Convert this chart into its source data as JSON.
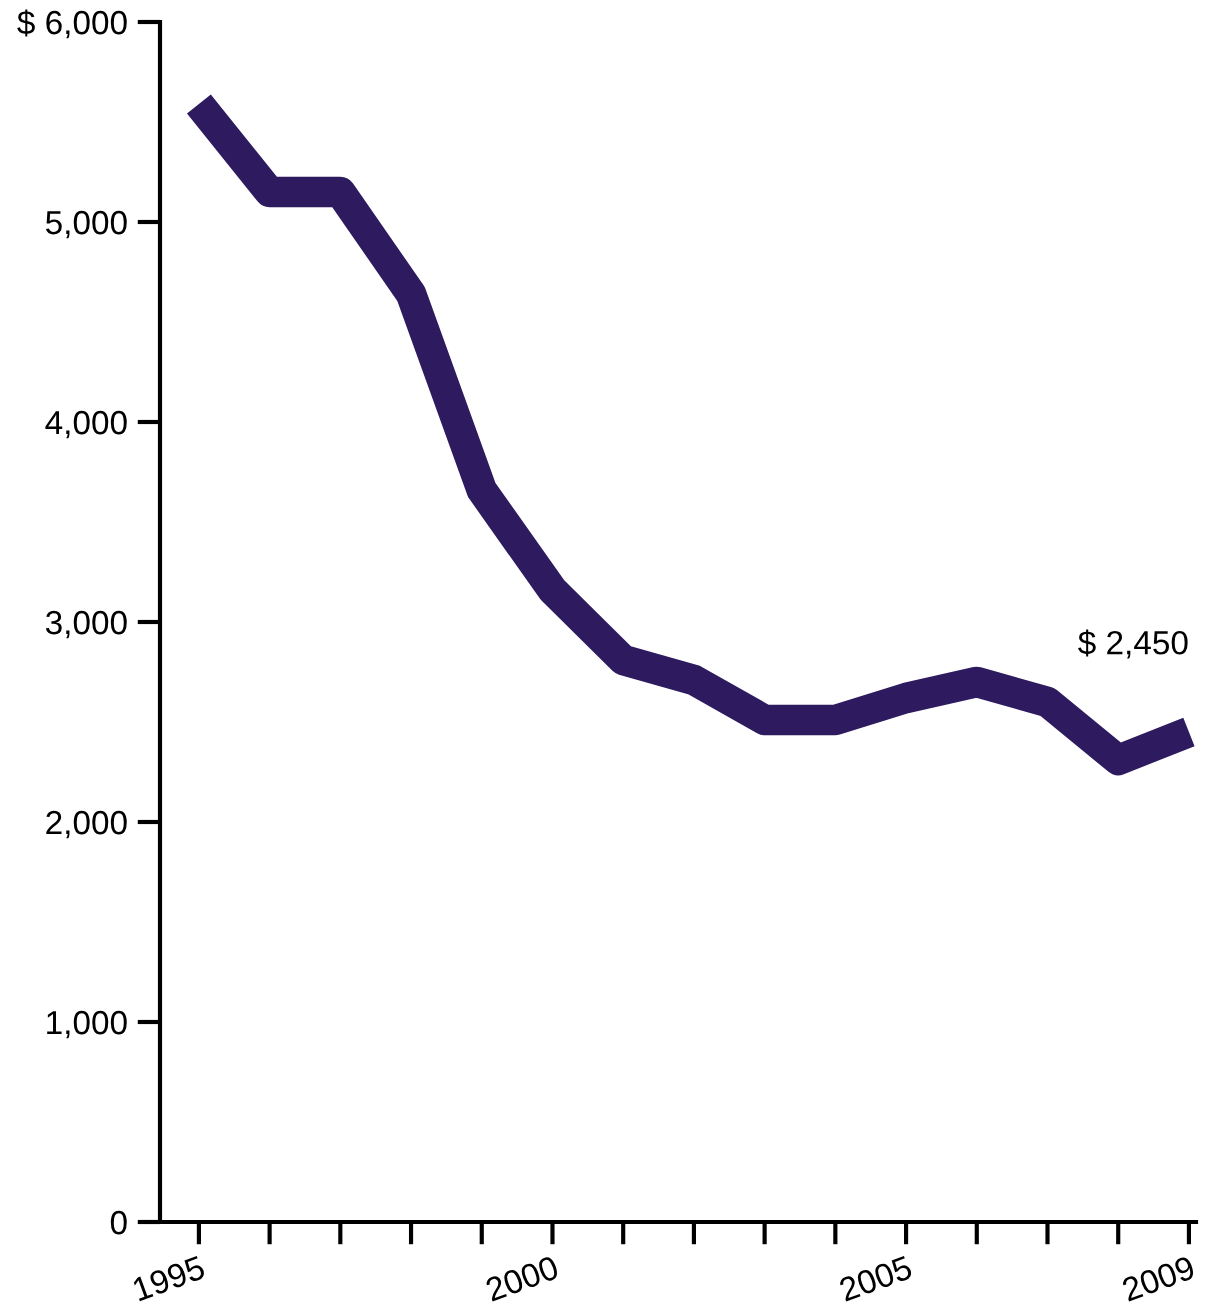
{
  "chart_data": {
    "type": "line",
    "x": [
      1995,
      1996,
      1997,
      1998,
      1999,
      2000,
      2001,
      2002,
      2003,
      2004,
      2005,
      2006,
      2007,
      2008,
      2009
    ],
    "series": [
      {
        "color": "#2e1a5e",
        "values": [
          5590,
          5150,
          5150,
          4640,
          3660,
          3160,
          2810,
          2710,
          2510,
          2510,
          2620,
          2700,
          2600,
          2310,
          2450
        ]
      }
    ],
    "xlim": [
      1994.45,
      2009.1
    ],
    "xticks": [
      1995,
      {
        "value": 1996,
        "label": null
      },
      {
        "value": 1997,
        "label": null
      },
      {
        "value": 1998,
        "label": null
      },
      {
        "value": 1999,
        "label": null
      },
      2000,
      {
        "value": 2001,
        "label": null
      },
      {
        "value": 2002,
        "label": null
      },
      {
        "value": 2003,
        "label": null
      },
      {
        "value": 2004,
        "label": null
      },
      2005,
      {
        "value": 2006,
        "label": null
      },
      {
        "value": 2007,
        "label": null
      },
      {
        "value": 2008,
        "label": null
      },
      2009
    ],
    "ylim": [
      0,
      6000
    ],
    "yticks": [
      0,
      {
        "value": 1000,
        "label": "1,000"
      },
      {
        "value": 2000,
        "label": "2,000"
      },
      {
        "value": 3000,
        "label": "3,000"
      },
      {
        "value": 4000,
        "label": "4,000"
      },
      {
        "value": 5000,
        "label": "5,000"
      },
      {
        "value": 6000,
        "label": "$ 6,000"
      }
    ],
    "annotations": [
      {
        "text": "$ 2,450",
        "x": 2009,
        "y": 2450
      }
    ],
    "grid": false,
    "marker": "none",
    "line_style": "solid"
  }
}
